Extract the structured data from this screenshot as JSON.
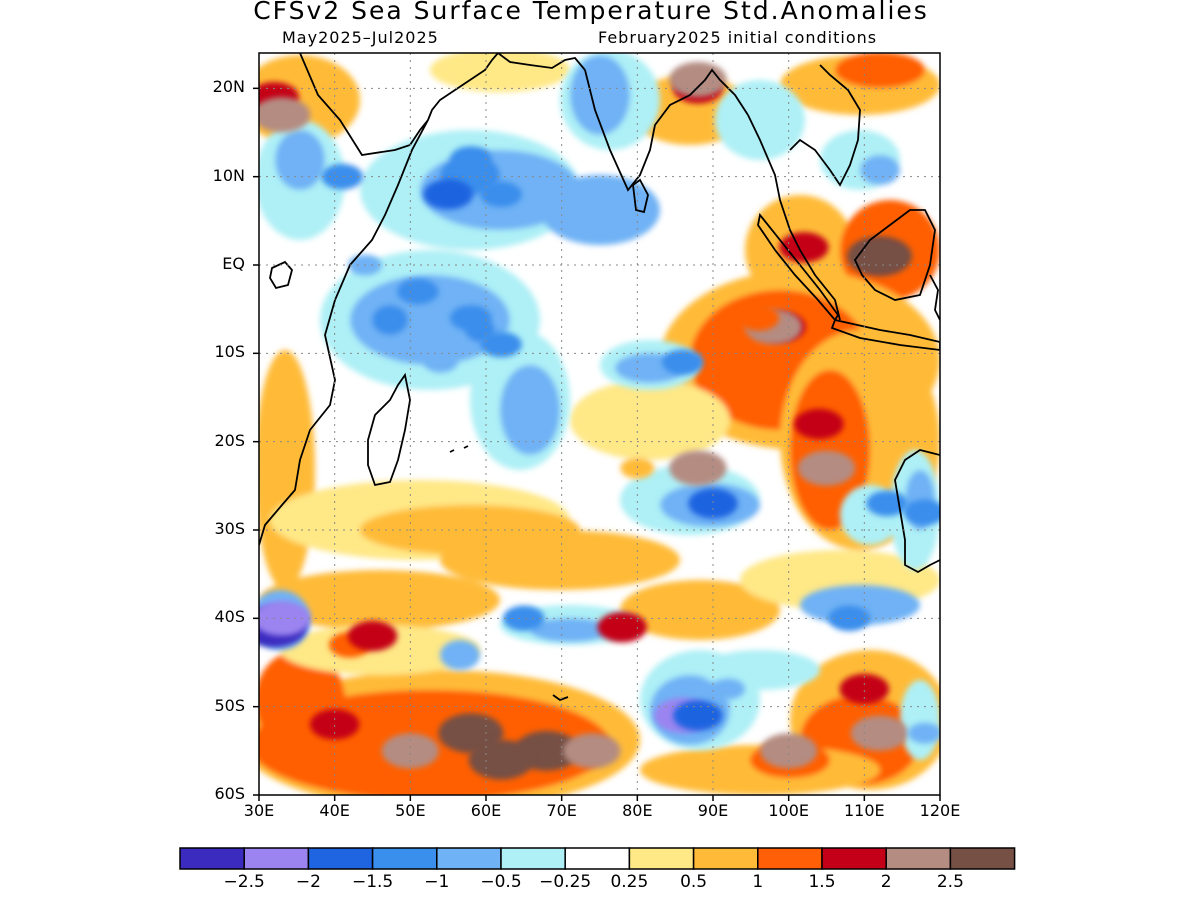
{
  "title": "CFSv2 Sea Surface Temperature Std.Anomalies",
  "subtitle_left": "May2025–Jul2025",
  "subtitle_right": "February2025 initial conditions",
  "map": {
    "lon_range": [
      30,
      120
    ],
    "lat_range": [
      -60,
      24
    ],
    "lat_ticks": [
      {
        "value": 20,
        "label": "20N"
      },
      {
        "value": 10,
        "label": "10N"
      },
      {
        "value": 0,
        "label": "EQ"
      },
      {
        "value": -10,
        "label": "10S"
      },
      {
        "value": -20,
        "label": "20S"
      },
      {
        "value": -30,
        "label": "30S"
      },
      {
        "value": -40,
        "label": "40S"
      },
      {
        "value": -50,
        "label": "50S"
      },
      {
        "value": -60,
        "label": "60S"
      }
    ],
    "lon_ticks": [
      {
        "value": 30,
        "label": "30E"
      },
      {
        "value": 40,
        "label": "40E"
      },
      {
        "value": 50,
        "label": "50E"
      },
      {
        "value": 60,
        "label": "60E"
      },
      {
        "value": 70,
        "label": "70E"
      },
      {
        "value": 80,
        "label": "80E"
      },
      {
        "value": 90,
        "label": "90E"
      },
      {
        "value": 100,
        "label": "100E"
      },
      {
        "value": 110,
        "label": "110E"
      },
      {
        "value": 120,
        "label": "120E"
      }
    ],
    "anomaly_features": [
      {
        "lon": 32,
        "lat": 19,
        "value": 1.5
      },
      {
        "lon": 33,
        "lat": 17,
        "value": 2.0
      },
      {
        "lon": 41,
        "lat": 10,
        "value": -1
      },
      {
        "lon": 55,
        "lat": 8,
        "value": -1.5
      },
      {
        "lon": 58,
        "lat": 12,
        "value": -1
      },
      {
        "lon": 62,
        "lat": 8,
        "value": -1
      },
      {
        "lon": 44,
        "lat": 0,
        "value": -0.5
      },
      {
        "lon": 51,
        "lat": -3,
        "value": -1
      },
      {
        "lon": 58,
        "lat": -6,
        "value": -1
      },
      {
        "lon": 62,
        "lat": -9,
        "value": -1
      },
      {
        "lon": 54,
        "lat": -11,
        "value": -0.5
      },
      {
        "lon": 75,
        "lat": 17,
        "value": -0.5
      },
      {
        "lon": 88,
        "lat": 20,
        "value": 1.5
      },
      {
        "lon": 88,
        "lat": 21,
        "value": 2.0
      },
      {
        "lon": 71,
        "lat": 6,
        "value": -0.5
      },
      {
        "lon": 86,
        "lat": -11,
        "value": -1
      },
      {
        "lon": 99,
        "lat": -7,
        "value": 1.5
      },
      {
        "lon": 98,
        "lat": -7,
        "value": 2.0
      },
      {
        "lon": 104,
        "lat": -18,
        "value": 1.5
      },
      {
        "lon": 105,
        "lat": -23,
        "value": 2.0
      },
      {
        "lon": 96,
        "lat": -6,
        "value": 1.0
      },
      {
        "lon": 112,
        "lat": 1,
        "value": 1.5
      },
      {
        "lon": 112,
        "lat": 1,
        "value": 2.5
      },
      {
        "lon": 102,
        "lat": 2,
        "value": 1.5
      },
      {
        "lon": 88,
        "lat": -23,
        "value": 2.0
      },
      {
        "lon": 80,
        "lat": -23,
        "value": 0.5
      },
      {
        "lon": 90,
        "lat": -27,
        "value": -1.5
      },
      {
        "lon": 113,
        "lat": -27,
        "value": -1
      },
      {
        "lon": 118,
        "lat": -28,
        "value": -1
      },
      {
        "lon": 32,
        "lat": -41,
        "value": -2.5
      },
      {
        "lon": 33,
        "lat": -40,
        "value": -2.0
      },
      {
        "lon": 42,
        "lat": -43,
        "value": 1.0
      },
      {
        "lon": 45,
        "lat": -42,
        "value": 1.5
      },
      {
        "lon": 65,
        "lat": -40,
        "value": -1.0
      },
      {
        "lon": 78,
        "lat": -41,
        "value": 1.5
      },
      {
        "lon": 108,
        "lat": -40,
        "value": -1.0
      },
      {
        "lon": 86,
        "lat": -51,
        "value": -2.0
      },
      {
        "lon": 88,
        "lat": -51,
        "value": -1.5
      },
      {
        "lon": 92,
        "lat": -48,
        "value": -0.5
      },
      {
        "lon": 40,
        "lat": -52,
        "value": 1.5
      },
      {
        "lon": 50,
        "lat": -55,
        "value": 2.0
      },
      {
        "lon": 58,
        "lat": -53,
        "value": 2.5
      },
      {
        "lon": 68,
        "lat": -55,
        "value": 2.5
      },
      {
        "lon": 62,
        "lat": -56,
        "value": 2.5
      },
      {
        "lon": 74,
        "lat": -55,
        "value": 2.0
      },
      {
        "lon": 100,
        "lat": -55,
        "value": 2.0
      },
      {
        "lon": 112,
        "lat": -53,
        "value": 2.0
      },
      {
        "lon": 110,
        "lat": -48,
        "value": 1.5
      },
      {
        "lon": 118,
        "lat": -53,
        "value": -0.5
      }
    ]
  },
  "colorbar": {
    "colors": [
      "#3b2bbf",
      "#9b84f0",
      "#1f64e0",
      "#3a8eec",
      "#6fb2f5",
      "#aef0f6",
      "#ffffff",
      "#ffe886",
      "#ffbb38",
      "#ff5f06",
      "#c40018",
      "#b48c82",
      "#764f45"
    ],
    "labels": [
      "−2.5",
      "−2",
      "−1.5",
      "−1",
      "−0.5",
      "−0.25",
      "0.25",
      "0.5",
      "1",
      "1.5",
      "2",
      "2.5"
    ]
  }
}
